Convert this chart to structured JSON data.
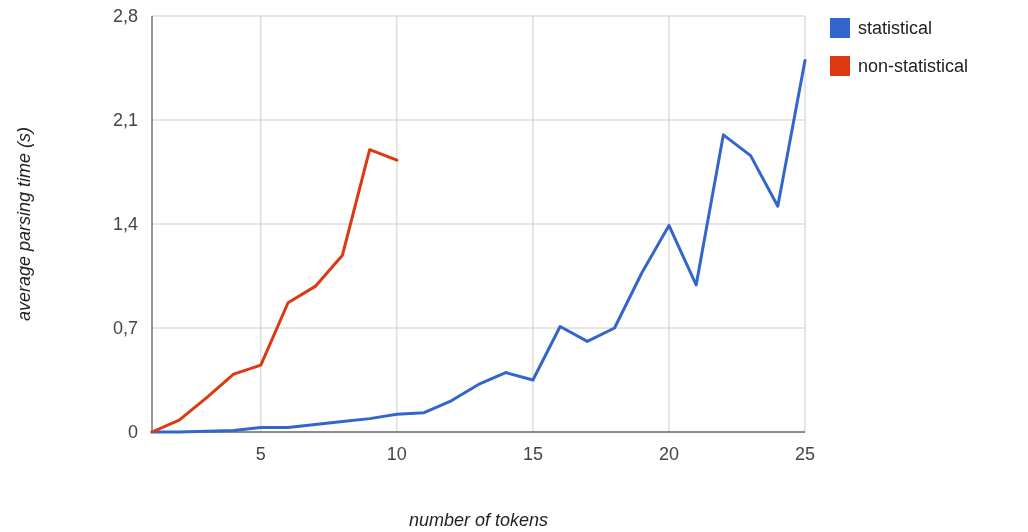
{
  "chart_data": {
    "type": "line",
    "xlabel": "number of tokens",
    "ylabel": "average parsing time (s)",
    "x": [
      1,
      2,
      3,
      4,
      5,
      6,
      7,
      8,
      9,
      10,
      11,
      12,
      13,
      14,
      15,
      16,
      17,
      18,
      19,
      20,
      21,
      22,
      23,
      24,
      25
    ],
    "series": [
      {
        "name": "statistical",
        "color": "#3366cc",
        "values": [
          0,
          0,
          0.005,
          0.01,
          0.03,
          0.03,
          0.05,
          0.07,
          0.09,
          0.12,
          0.13,
          0.21,
          0.32,
          0.4,
          0.35,
          0.71,
          0.61,
          0.7,
          1.07,
          1.39,
          0.99,
          2.0,
          1.86,
          1.52,
          2.5
        ]
      },
      {
        "name": "non-statistical",
        "color": "#dc3912",
        "x": [
          1,
          2,
          3,
          4,
          5,
          6,
          7,
          8,
          9,
          10
        ],
        "values": [
          0,
          0.08,
          0.23,
          0.39,
          0.45,
          0.87,
          0.98,
          1.19,
          1.9,
          1.83
        ]
      }
    ],
    "xlim": [
      1,
      25
    ],
    "xticks": [
      5,
      10,
      15,
      20,
      25
    ],
    "ylim": [
      0,
      2.8
    ],
    "yticks": [
      {
        "value": 0,
        "label": "0"
      },
      {
        "value": 0.7,
        "label": "0,7"
      },
      {
        "value": 1.4,
        "label": "1,4"
      },
      {
        "value": 2.1,
        "label": "2,1"
      },
      {
        "value": 2.8,
        "label": "2,8"
      }
    ],
    "grid": true,
    "legend": "top right",
    "marker": "none",
    "line_style": "solid"
  }
}
